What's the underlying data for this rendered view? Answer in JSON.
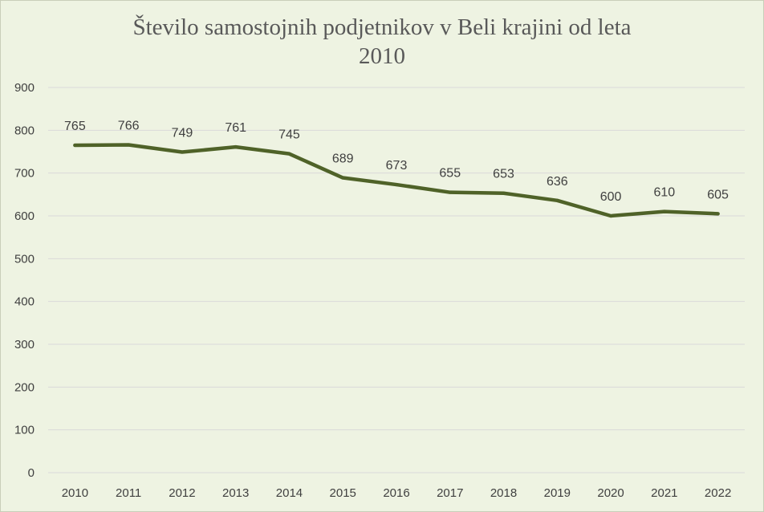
{
  "chart_data": {
    "type": "line",
    "title_line1": "Število samostojnih podjetnikov v Beli krajini od leta",
    "title_line2": "2010",
    "x": [
      "2010",
      "2011",
      "2012",
      "2013",
      "2014",
      "2015",
      "2016",
      "2017",
      "2018",
      "2019",
      "2020",
      "2021",
      "2022"
    ],
    "series": [
      {
        "values": [
          765,
          766,
          749,
          761,
          745,
          689,
          673,
          655,
          653,
          636,
          600,
          610,
          605
        ]
      }
    ],
    "ylim": [
      0,
      900
    ],
    "yticks": [
      "0",
      "100",
      "200",
      "300",
      "400",
      "500",
      "600",
      "700",
      "800",
      "900"
    ],
    "grid": true,
    "data_labels": true,
    "xlabel": "",
    "ylabel": "",
    "colors": {
      "line": "#4f6228",
      "background": "#eef3e2",
      "grid": "#d9d9d9",
      "text": "#404040"
    }
  }
}
